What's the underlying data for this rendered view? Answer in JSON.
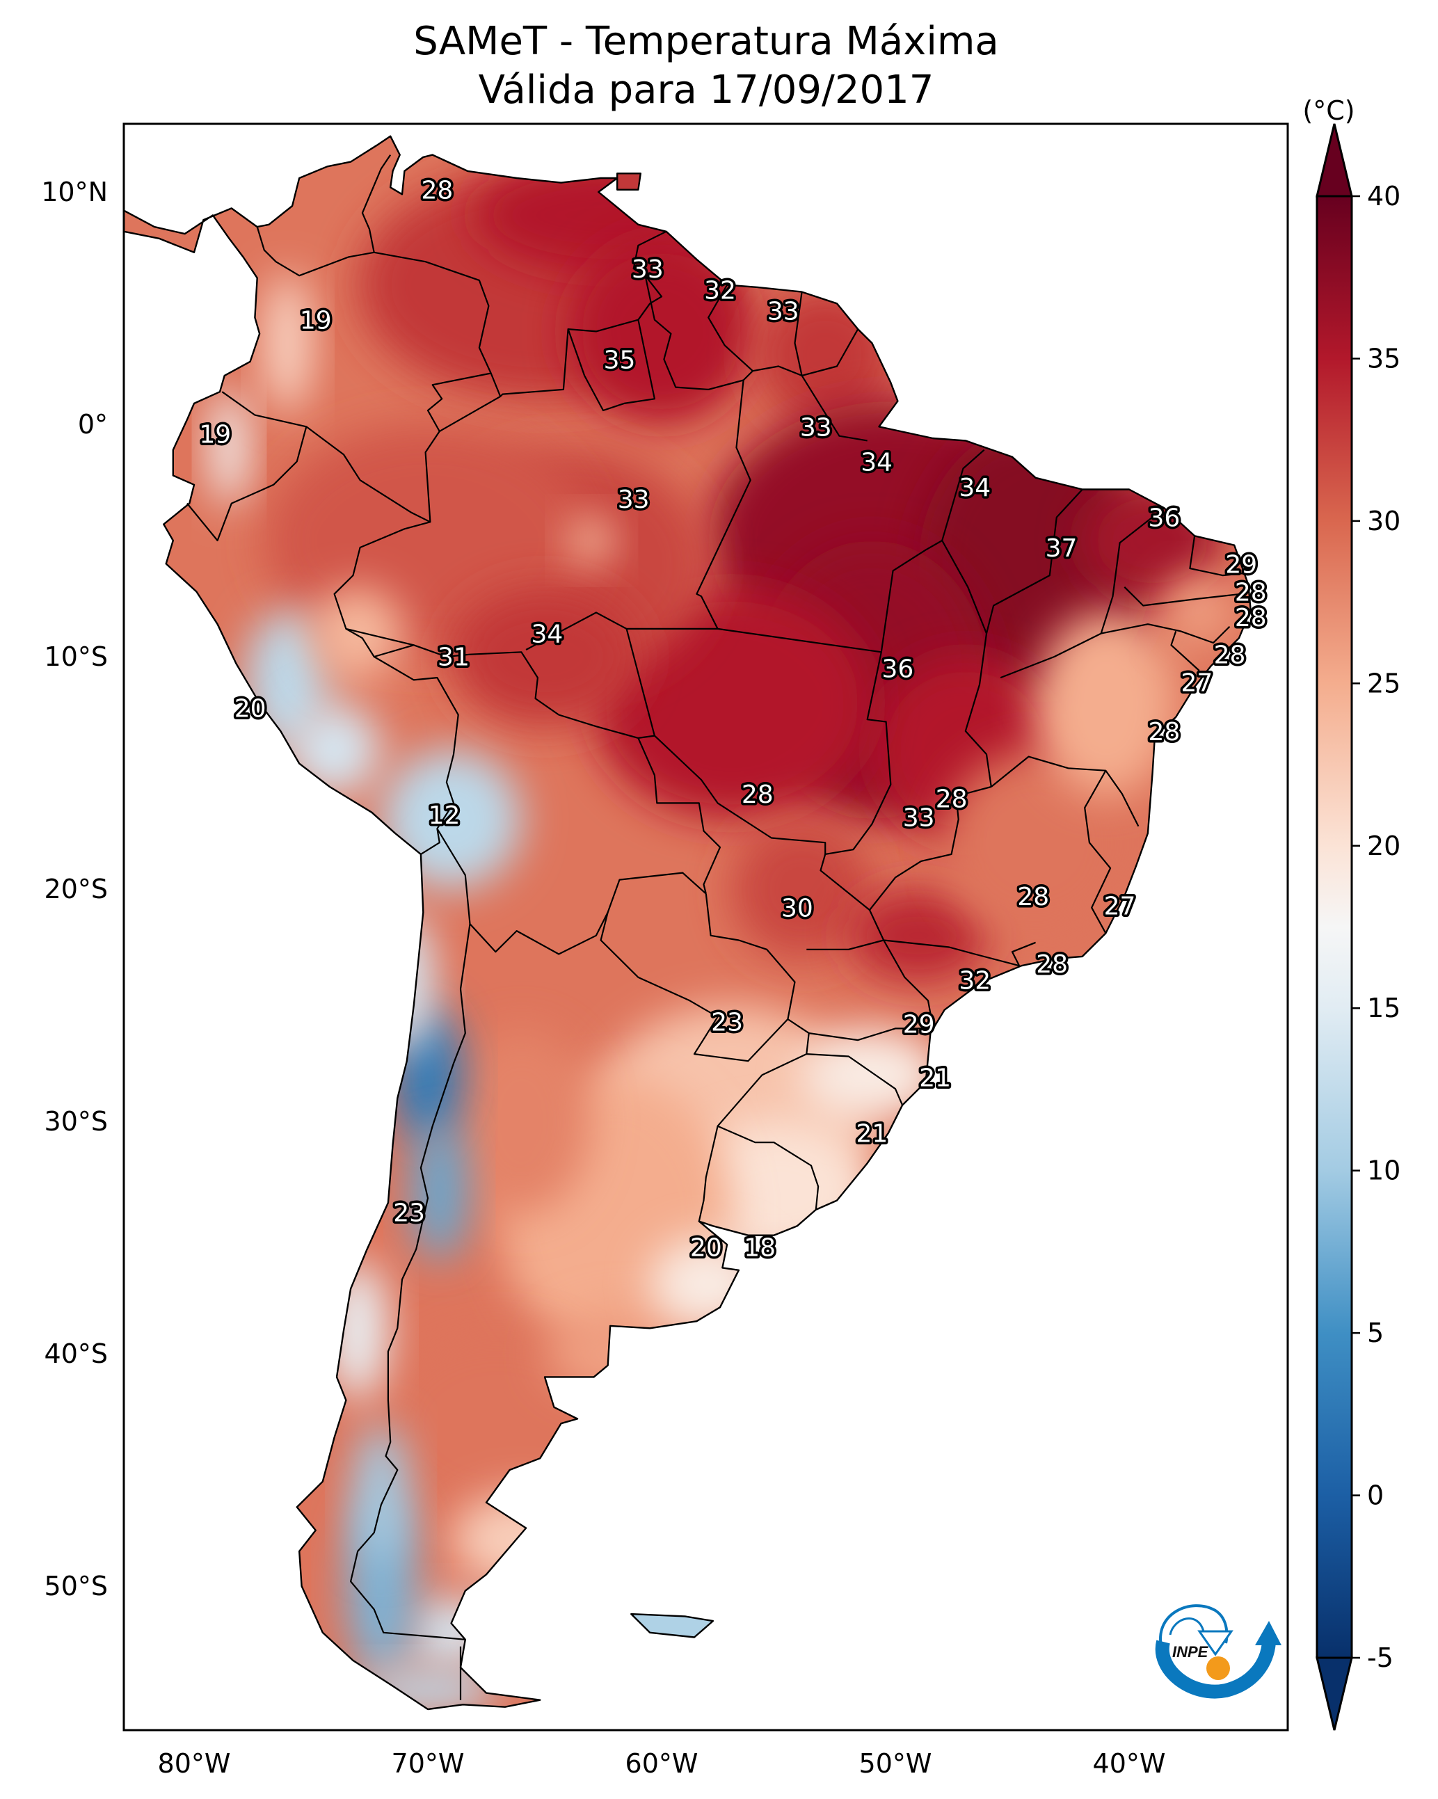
{
  "title": {
    "line1": "SAMeT - Temperatura Máxima",
    "line2": "Válida para 17/09/2017"
  },
  "logo": {
    "text": "INPE",
    "colors": {
      "arc": "#0a78be",
      "sun": "#f39a1b"
    }
  },
  "chart_data": {
    "type": "heatmap",
    "title": "SAMeT - Temperatura Máxima — Válida para 17/09/2017",
    "subject": "Maximum temperature over South America",
    "units_label": "(°C)",
    "map_extent": {
      "lon": [
        -83,
        -33.2
      ],
      "lat": [
        -56.2,
        12.9
      ]
    },
    "x_ticks": [
      {
        "lon": -80,
        "label": "80°W"
      },
      {
        "lon": -70,
        "label": "70°W"
      },
      {
        "lon": -60,
        "label": "60°W"
      },
      {
        "lon": -50,
        "label": "50°W"
      },
      {
        "lon": -40,
        "label": "40°W"
      }
    ],
    "y_ticks": [
      {
        "lat": 10,
        "label": "10°N"
      },
      {
        "lat": 0,
        "label": "0°"
      },
      {
        "lat": -10,
        "label": "10°S"
      },
      {
        "lat": -20,
        "label": "20°S"
      },
      {
        "lat": -30,
        "label": "30°S"
      },
      {
        "lat": -40,
        "label": "40°S"
      },
      {
        "lat": -50,
        "label": "50°S"
      }
    ],
    "colorbar": {
      "colormap": "RdBu_r",
      "range": [
        -5,
        40
      ],
      "extend": "both",
      "ticks": [
        40,
        35,
        30,
        25,
        20,
        15,
        10,
        5,
        0,
        -5
      ],
      "tick_labels": [
        "40",
        "35",
        "30",
        "25",
        "20",
        "15",
        "10",
        "5",
        "0",
        "-5"
      ],
      "stops": [
        {
          "v": -5,
          "c": "#08306b"
        },
        {
          "v": 0,
          "c": "#1c5fa5"
        },
        {
          "v": 5,
          "c": "#3f8fc4"
        },
        {
          "v": 10,
          "c": "#a3cbe3"
        },
        {
          "v": 15,
          "c": "#e1ecf3"
        },
        {
          "v": 17.5,
          "c": "#f6f6f6"
        },
        {
          "v": 20,
          "c": "#fbe3d6"
        },
        {
          "v": 25,
          "c": "#f4ad8e"
        },
        {
          "v": 30,
          "c": "#d9674f"
        },
        {
          "v": 35,
          "c": "#b2182b"
        },
        {
          "v": 40,
          "c": "#67001f"
        }
      ]
    },
    "station_values": [
      {
        "lon": -69.6,
        "lat": 10.1,
        "value": 28
      },
      {
        "lon": -60.6,
        "lat": 6.7,
        "value": 33
      },
      {
        "lon": -57.5,
        "lat": 5.8,
        "value": 32
      },
      {
        "lon": -54.8,
        "lat": 4.9,
        "value": 33
      },
      {
        "lon": -74.8,
        "lat": 4.5,
        "value": 19
      },
      {
        "lon": -61.8,
        "lat": 2.8,
        "value": 35
      },
      {
        "lon": -53.4,
        "lat": -0.1,
        "value": 33
      },
      {
        "lon": -79.1,
        "lat": -0.4,
        "value": 19
      },
      {
        "lon": -50.8,
        "lat": -1.6,
        "value": 34
      },
      {
        "lon": -46.6,
        "lat": -2.7,
        "value": 34
      },
      {
        "lon": -61.2,
        "lat": -3.2,
        "value": 33
      },
      {
        "lon": -38.5,
        "lat": -4.0,
        "value": 36
      },
      {
        "lon": -42.9,
        "lat": -5.3,
        "value": 37
      },
      {
        "lon": -35.2,
        "lat": -6.0,
        "value": 29
      },
      {
        "lon": -34.8,
        "lat": -7.2,
        "value": 28
      },
      {
        "lon": -34.8,
        "lat": -8.3,
        "value": 28
      },
      {
        "lon": -64.9,
        "lat": -8.99,
        "value": 34
      },
      {
        "lon": -35.7,
        "lat": -9.9,
        "value": 28
      },
      {
        "lon": -68.9,
        "lat": -9.99,
        "value": 31
      },
      {
        "lon": -49.9,
        "lat": -10.5,
        "value": 36
      },
      {
        "lon": -37.1,
        "lat": -11.1,
        "value": 27
      },
      {
        "lon": -77.6,
        "lat": -12.2,
        "value": 20
      },
      {
        "lon": -38.5,
        "lat": -13.2,
        "value": 28
      },
      {
        "lon": -55.9,
        "lat": -15.9,
        "value": 28
      },
      {
        "lon": -47.6,
        "lat": -16.1,
        "value": 28
      },
      {
        "lon": -69.3,
        "lat": -16.8,
        "value": 12
      },
      {
        "lon": -49.0,
        "lat": -16.9,
        "value": 33
      },
      {
        "lon": -44.1,
        "lat": -20.3,
        "value": 28
      },
      {
        "lon": -40.4,
        "lat": -20.7,
        "value": 27
      },
      {
        "lon": -54.2,
        "lat": -20.8,
        "value": 30
      },
      {
        "lon": -43.3,
        "lat": -23.2,
        "value": 28
      },
      {
        "lon": -46.6,
        "lat": -23.9,
        "value": 32
      },
      {
        "lon": -57.2,
        "lat": -25.7,
        "value": 23
      },
      {
        "lon": -49.0,
        "lat": -25.8,
        "value": 29
      },
      {
        "lon": -48.3,
        "lat": -28.1,
        "value": 21
      },
      {
        "lon": -51.0,
        "lat": -30.5,
        "value": 21
      },
      {
        "lon": -70.8,
        "lat": -33.9,
        "value": 23
      },
      {
        "lon": -58.1,
        "lat": -35.4,
        "value": 20
      },
      {
        "lon": -55.8,
        "lat": -35.4,
        "value": 18
      }
    ]
  }
}
